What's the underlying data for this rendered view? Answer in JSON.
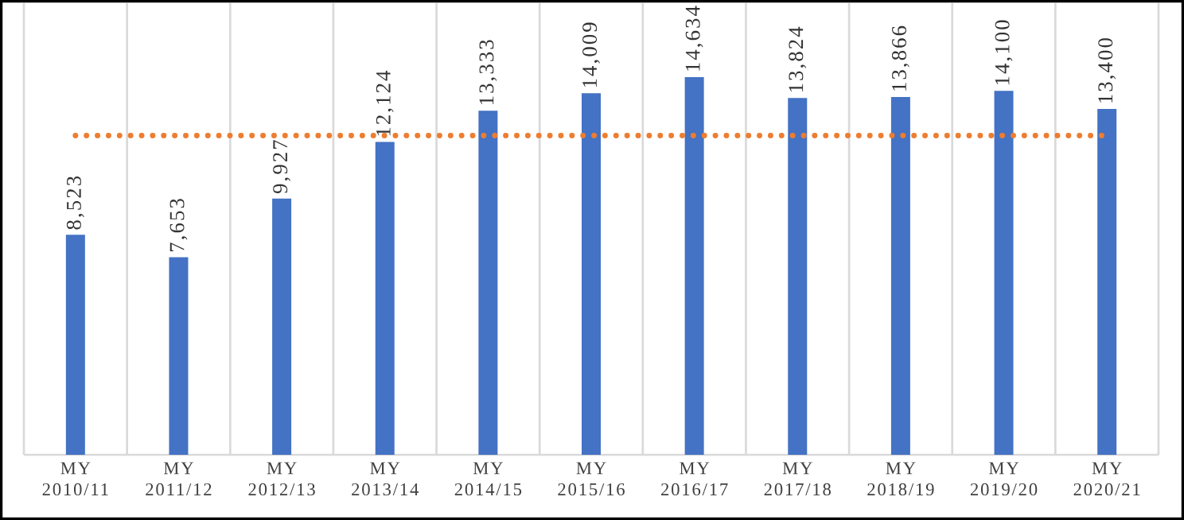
{
  "chart_data": {
    "type": "bar",
    "categories": [
      "MY 2010/11",
      "MY 2011/12",
      "MY 2012/13",
      "MY 2013/14",
      "MY 2014/15",
      "MY 2015/16",
      "MY 2016/17",
      "MY 2017/18",
      "MY 2018/19",
      "MY 2019/20",
      "MY 2020/21"
    ],
    "series": [
      {
        "color": "#4472c4",
        "values": [
          8523,
          7653,
          9927,
          12124,
          13333,
          14009,
          14634,
          13824,
          13866,
          14100,
          13400
        ],
        "value_labels": [
          "8,523",
          "7,653",
          "9,927",
          "12,124",
          "13,333",
          "14,009",
          "14,634",
          "13,824",
          "13,866",
          "14,100",
          "13,400"
        ]
      },
      {
        "type": "line",
        "color": "#ed7d31",
        "line_style": "dotted",
        "marker": "none",
        "values": [
          12370,
          12370,
          12370,
          12370,
          12370,
          12370,
          12370,
          12370,
          12370,
          12370,
          12370
        ]
      }
    ],
    "ylim": [
      0,
      17500
    ],
    "grid": "x",
    "tick_labels": "x"
  }
}
